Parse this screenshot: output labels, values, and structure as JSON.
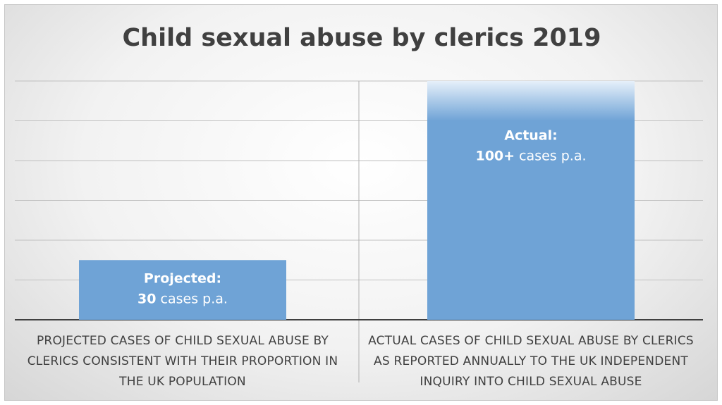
{
  "chart_data": {
    "type": "bar",
    "title": "Child sexual abuse by clerics 2019",
    "xlabel": "",
    "ylabel": "",
    "ylim": [
      0,
      120
    ],
    "grid": true,
    "categories": [
      [
        "PROJECTED CASES OF CHILD SEXUAL ABUSE BY",
        "CLERICS CONSISTENT WITH THEIR PROPORTION IN",
        "THE UK POPULATION"
      ],
      [
        "ACTUAL CASES OF CHILD SEXUAL ABUSE BY CLERICS",
        "AS REPORTED ANNUALLY TO THE UK INDEPENDENT",
        "INQUIRY INTO CHILD SEXUAL ABUSE"
      ]
    ],
    "values": [
      30,
      100
    ],
    "fade_top": [
      null,
      120
    ],
    "data_labels": [
      {
        "title": "Projected:",
        "value": "30",
        "rest": " cases p.a."
      },
      {
        "title": "Actual:",
        "value": "100+",
        "rest": " cases p.a."
      }
    ],
    "colors": {
      "bar": "#6fa3d6",
      "bar_fade": "#e6f0fa",
      "grid": "#c0c0c0",
      "axis": "#404040",
      "text": "#404040"
    }
  }
}
